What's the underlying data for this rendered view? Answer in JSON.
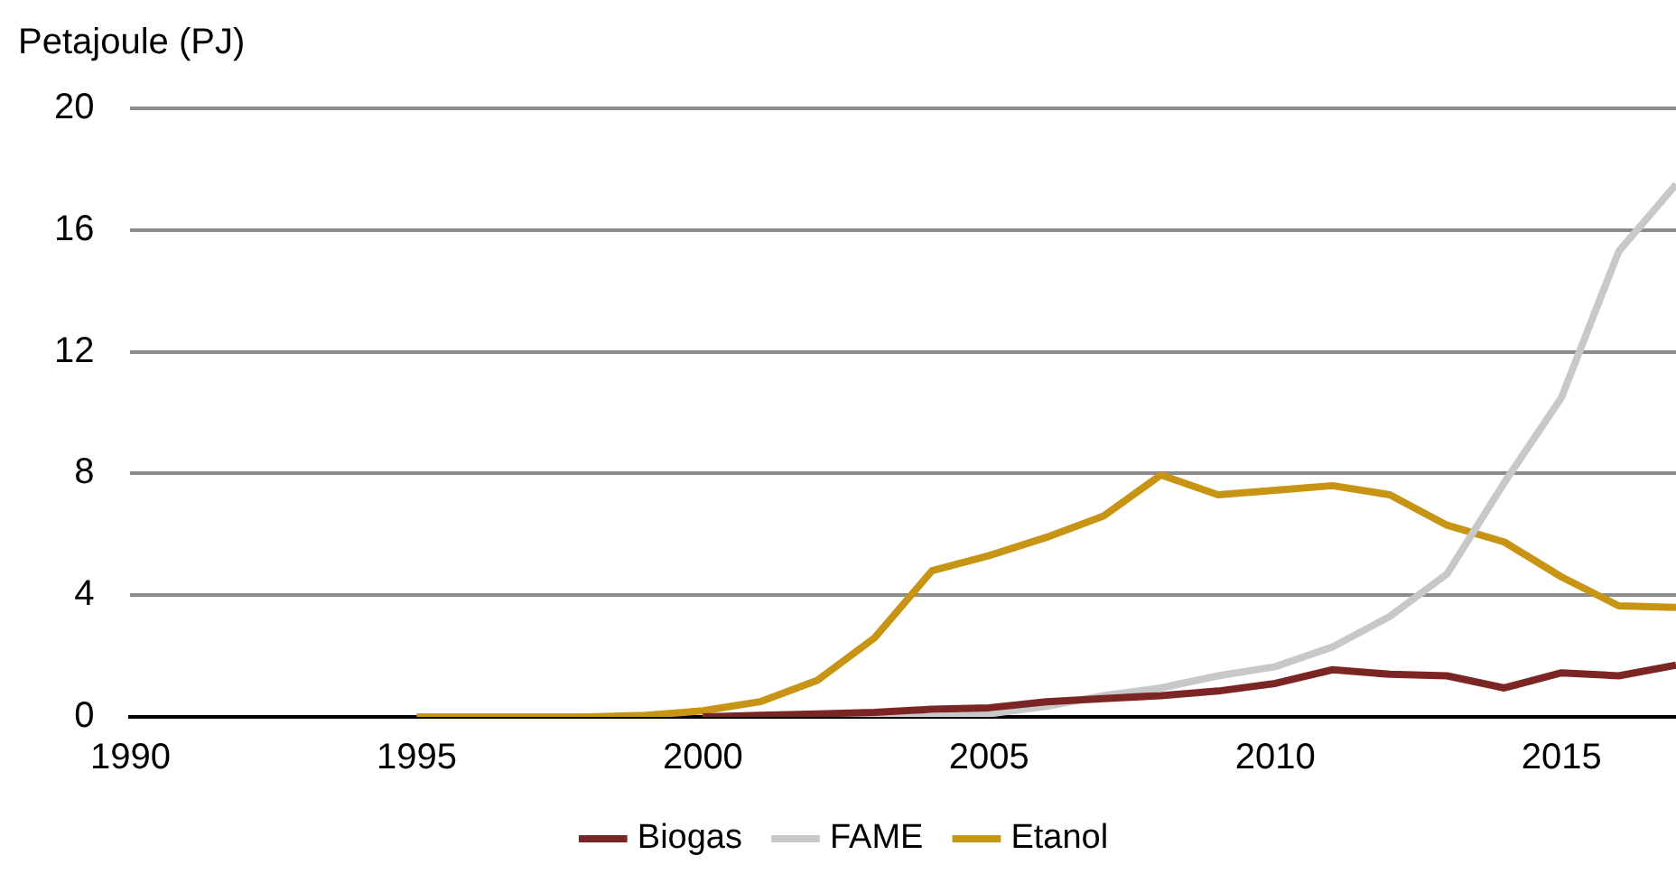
{
  "chart_data": {
    "type": "line",
    "ylabel": "Petajoule (PJ)",
    "x": [
      1995,
      1996,
      1997,
      1998,
      1999,
      2000,
      2001,
      2002,
      2003,
      2004,
      2005,
      2006,
      2007,
      2008,
      2009,
      2010,
      2011,
      2012,
      2013,
      2014,
      2015,
      2016,
      2017
    ],
    "series": [
      {
        "name": "Biogas",
        "color": "#7b2525",
        "x": [
          2000,
          2001,
          2002,
          2003,
          2004,
          2005,
          2006,
          2007,
          2008,
          2009,
          2010,
          2011,
          2012,
          2013,
          2014,
          2015,
          2016,
          2017
        ],
        "values": [
          0,
          0.05,
          0.1,
          0.15,
          0.25,
          0.3,
          0.5,
          0.6,
          0.7,
          0.85,
          1.1,
          1.55,
          1.4,
          1.35,
          0.95,
          1.45,
          1.35,
          1.7
        ]
      },
      {
        "name": "FAME",
        "color": "#c8c8c8",
        "x": [
          2000,
          2001,
          2002,
          2003,
          2004,
          2005,
          2006,
          2007,
          2008,
          2009,
          2010,
          2011,
          2012,
          2013,
          2014,
          2015,
          2016,
          2017
        ],
        "values": [
          0,
          0,
          0,
          0,
          0,
          0.1,
          0.35,
          0.7,
          0.95,
          1.35,
          1.65,
          2.3,
          3.3,
          4.7,
          7.7,
          10.5,
          15.3,
          17.5
        ]
      },
      {
        "name": "Etanol",
        "color": "#c89414",
        "values": [
          0,
          0,
          0,
          0,
          0.05,
          0.2,
          0.5,
          1.2,
          2.6,
          4.8,
          5.3,
          5.9,
          6.6,
          7.95,
          7.3,
          7.45,
          7.6,
          7.3,
          6.3,
          5.75,
          4.6,
          3.65,
          3.6
        ]
      }
    ],
    "xlim": [
      1990,
      2017
    ],
    "xticks": [
      1990,
      1995,
      2000,
      2005,
      2010,
      2015
    ],
    "ylim": [
      0,
      20
    ],
    "yticks": [
      0,
      4,
      8,
      12,
      16,
      20
    ],
    "grid": "y",
    "legend": "bottom",
    "marker": "none",
    "line_style": "solid"
  }
}
